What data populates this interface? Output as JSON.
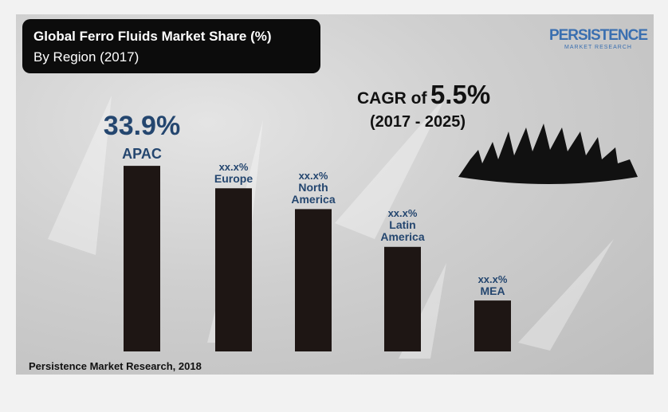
{
  "chart_data": {
    "type": "bar",
    "title": "Global Ferro Fluids Market Share (%)",
    "subtitle": "By Region (2017)",
    "categories": [
      "APAC",
      "Europe",
      "North America",
      "Latin America",
      "MEA"
    ],
    "values": [
      33.9,
      29.8,
      26.0,
      19.1,
      9.3
    ],
    "value_labels": [
      "33.9%",
      "xx.x%",
      "xx.x%",
      "xx.x%",
      "xx.x%"
    ],
    "color": "#1e1614",
    "annotations": [
      "CAGR of",
      "5.5%",
      "(2017 - 2025)"
    ],
    "source": "Persistence Market Research, 2018",
    "logo": [
      "PERSISTENCE",
      "MARKET RESEARCH"
    ]
  }
}
